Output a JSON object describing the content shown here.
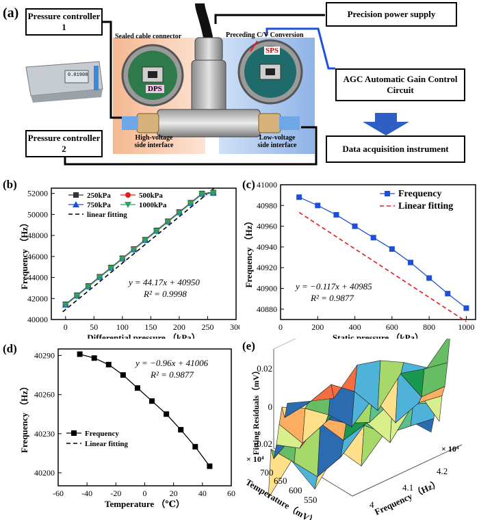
{
  "panel_a": {
    "label": "(a)",
    "pc1": "Pressure controller 1",
    "pc2": "Pressure controller 2",
    "power": "Precision power supply",
    "agc": "AGC Automatic Gain Control Circuit",
    "daq": "Data acquisition instrument",
    "sealed": "Sealed cable connector",
    "preceding": "Preceding C/V Conversion",
    "sps": "SPS",
    "dps": "DPS",
    "high_side": "High-voltage side interface",
    "low_side": "Low-voltage side interface",
    "controller_display": "0.01908"
  },
  "chart_data": [
    {
      "panel": "(b)",
      "type": "line",
      "xlabel": "Differential pressure （kPa）",
      "ylabel": "Frequency （Hz）",
      "xlim": [
        -25,
        300
      ],
      "ylim": [
        40000,
        52500
      ],
      "xticks": [
        "0",
        "50",
        "100",
        "150",
        "200",
        "250",
        "300"
      ],
      "yticks": [
        "40000",
        "42000",
        "44000",
        "46000",
        "48000",
        "50000",
        "52000"
      ],
      "x": [
        0,
        20,
        40,
        60,
        80,
        100,
        120,
        140,
        160,
        180,
        200,
        220,
        240,
        260
      ],
      "series": [
        {
          "name": "250kPa",
          "color": "#333333",
          "marker": "square",
          "values": [
            41450,
            42310,
            43190,
            44070,
            44950,
            45830,
            46710,
            47590,
            48480,
            49350,
            50230,
            51110,
            51990,
            52080
          ]
        },
        {
          "name": "500kPa",
          "color": "#e41a1c",
          "marker": "circle",
          "values": [
            41420,
            42280,
            43160,
            44040,
            44920,
            45800,
            46680,
            47560,
            48440,
            49320,
            50200,
            51080,
            51960,
            52060
          ]
        },
        {
          "name": "750kPa",
          "color": "#1f4fd8",
          "marker": "triangle",
          "values": [
            41400,
            42260,
            43140,
            44020,
            44900,
            45780,
            46660,
            47540,
            48420,
            49300,
            50180,
            51060,
            51940,
            52040
          ]
        },
        {
          "name": "1000kPa",
          "color": "#2ca25f",
          "marker": "triangle-down",
          "values": [
            41380,
            42240,
            43120,
            44000,
            44880,
            45760,
            46640,
            47520,
            48400,
            49280,
            50160,
            51040,
            51920,
            52020
          ]
        }
      ],
      "fit_label": "linear fitting",
      "fit": {
        "slope": 44.17,
        "intercept": 40950
      },
      "equation": "y = 44.17x + 40950",
      "r2": "R² = 0.9998",
      "legend": "top-left"
    },
    {
      "panel": "(c)",
      "type": "line",
      "xlabel": "Static pressure （kPa）",
      "ylabel": "Frequency （Hz）",
      "xlim": [
        0,
        1050
      ],
      "ylim": [
        40870,
        41000
      ],
      "xticks": [
        "0",
        "200",
        "400",
        "600",
        "800",
        "1000"
      ],
      "yticks": [
        "40880",
        "40900",
        "40920",
        "40940",
        "40960",
        "40980",
        "41000"
      ],
      "x": [
        100,
        200,
        300,
        400,
        500,
        600,
        700,
        800,
        900,
        1000
      ],
      "series": [
        {
          "name": "Frequency",
          "color": "#1f4fd8",
          "marker": "square",
          "values": [
            40988,
            40980,
            40971,
            40960,
            40949,
            40938,
            40925,
            40910,
            40895,
            40881
          ]
        }
      ],
      "fit_label": "Linear fitting",
      "fit": {
        "slope": -0.117,
        "intercept": 40985
      },
      "equation": "y = −0.117x + 40985",
      "r2": "R² = 0.9877",
      "legend": "top-right"
    },
    {
      "panel": "(d)",
      "type": "line",
      "xlabel": "Temperature （℃）",
      "ylabel": "Frequency （Hz）",
      "xlim": [
        -60,
        60
      ],
      "ylim": [
        40190,
        40295
      ],
      "xticks": [
        "-60",
        "-40",
        "-20",
        "0",
        "20",
        "40",
        "60"
      ],
      "yticks": [
        "40200",
        "40230",
        "40260",
        "40290"
      ],
      "x": [
        -45,
        -35,
        -25,
        -15,
        -5,
        5,
        15,
        25,
        35,
        45
      ],
      "series": [
        {
          "name": "Frequency",
          "color": "#000000",
          "marker": "square",
          "values": [
            40291,
            40288,
            40283,
            40275,
            40265,
            40255,
            40245,
            40233,
            40220,
            40205
          ]
        }
      ],
      "fit_label": "Linear fitting",
      "fit": {
        "slope": -0.96,
        "intercept": 41006
      },
      "equation": "y = −0.96x + 41006",
      "r2": "R² = 0.9877",
      "legend": "bottom-left"
    },
    {
      "panel": "(e)",
      "type": "surface",
      "zlabel": "Fitting Residuals（mV）",
      "ylabel": "Temperature（mV）",
      "xlabel": "Frequency （Hz）",
      "zticks": [
        "0.02",
        "0",
        "-0.02"
      ],
      "yticks": [
        "700",
        "650",
        "600",
        "550"
      ],
      "xticks": [
        "4",
        "4.1",
        "4.2"
      ],
      "x_multiplier": "× 10⁴",
      "y_multiplier": "× 10⁴"
    }
  ]
}
